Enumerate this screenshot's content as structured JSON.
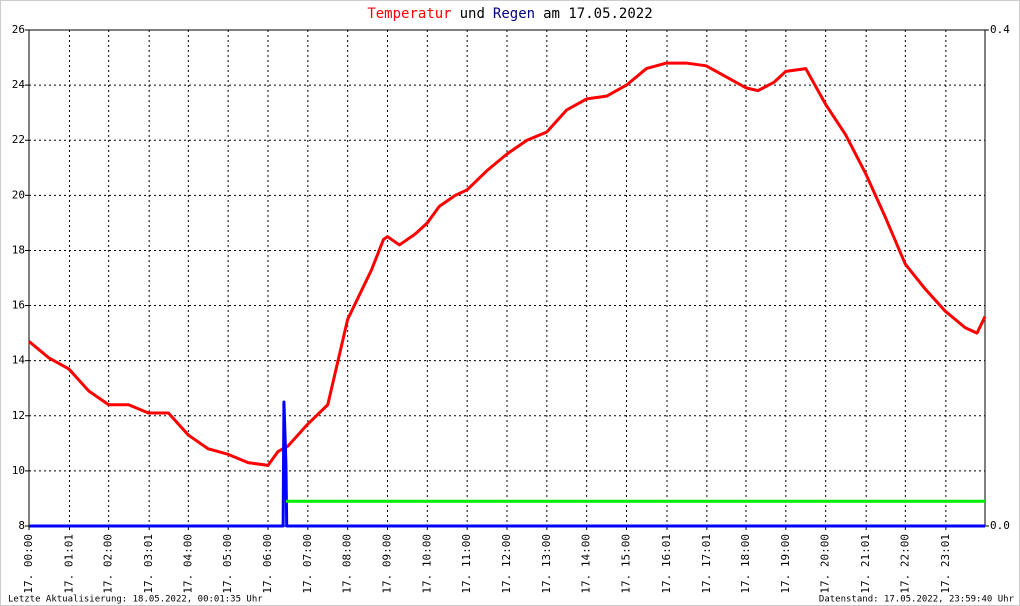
{
  "chart_data": {
    "type": "line",
    "title_segments": [
      {
        "text": "Temperatur",
        "color": "#ff0000"
      },
      {
        "text": "und",
        "color": "#000000"
      },
      {
        "text": "Regen",
        "color": "#000080"
      },
      {
        "text": "am 17.05.2022",
        "color": "#000000"
      }
    ],
    "footer_left": "Letzte Aktualisierung: 18.05.2022, 00:01:35 Uhr",
    "footer_right": "Datenstand: 17.05.2022, 23:59:40 Uhr",
    "xlim": [
      0,
      24
    ],
    "xticks": [
      {
        "value": 0,
        "label": "17. 00:00"
      },
      {
        "value": 1.017,
        "label": "17. 01:01"
      },
      {
        "value": 2,
        "label": "17. 02:00"
      },
      {
        "value": 3.017,
        "label": "17. 03:01"
      },
      {
        "value": 4,
        "label": "17. 04:00"
      },
      {
        "value": 5,
        "label": "17. 05:00"
      },
      {
        "value": 6,
        "label": "17. 06:00"
      },
      {
        "value": 7,
        "label": "17. 07:00"
      },
      {
        "value": 8,
        "label": "17. 08:00"
      },
      {
        "value": 9,
        "label": "17. 09:00"
      },
      {
        "value": 10,
        "label": "17. 10:00"
      },
      {
        "value": 11,
        "label": "17. 11:00"
      },
      {
        "value": 12,
        "label": "17. 12:00"
      },
      {
        "value": 13,
        "label": "17. 13:00"
      },
      {
        "value": 14,
        "label": "17. 14:00"
      },
      {
        "value": 15,
        "label": "17. 15:00"
      },
      {
        "value": 16.017,
        "label": "17. 16:01"
      },
      {
        "value": 17.017,
        "label": "17. 17:01"
      },
      {
        "value": 18,
        "label": "17. 18:00"
      },
      {
        "value": 19,
        "label": "17. 19:00"
      },
      {
        "value": 20,
        "label": "17. 20:00"
      },
      {
        "value": 21.017,
        "label": "17. 21:01"
      },
      {
        "value": 22,
        "label": "17. 22:00"
      },
      {
        "value": 23.017,
        "label": "17. 23:01"
      }
    ],
    "ylim": [
      8,
      26
    ],
    "yticks": [
      8,
      10,
      12,
      14,
      16,
      18,
      20,
      22,
      24,
      26
    ],
    "y2lim": [
      0,
      0.4
    ],
    "y2ticks": [
      {
        "value": 0,
        "label": "0.0"
      },
      {
        "value": 0.4,
        "label": "0.4"
      }
    ],
    "grid": true,
    "series": [
      {
        "color": "#ff0000",
        "x": [
          0,
          0.5,
          1,
          1.5,
          2,
          2.5,
          3,
          3.5,
          4,
          4.5,
          5,
          5.5,
          6,
          6.25,
          6.5,
          7,
          7.5,
          8,
          8.6,
          8.9,
          9,
          9.3,
          9.7,
          10,
          10.3,
          10.7,
          11,
          11.5,
          12,
          12.5,
          13,
          13.5,
          14,
          14.5,
          15,
          15.5,
          16,
          16.5,
          17,
          17.5,
          18,
          18.3,
          18.7,
          19,
          19.5,
          20,
          20.5,
          21,
          21.5,
          22,
          22.5,
          23,
          23.5,
          23.8,
          24
        ],
        "values": [
          14.7,
          14.1,
          13.7,
          12.9,
          12.4,
          12.4,
          12.1,
          12.1,
          11.3,
          10.8,
          10.6,
          10.3,
          10.2,
          10.7,
          10.9,
          11.7,
          12.4,
          15.5,
          17.3,
          18.4,
          18.5,
          18.2,
          18.6,
          19.0,
          19.6,
          20.0,
          20.2,
          20.9,
          21.5,
          22.0,
          22.3,
          23.1,
          23.5,
          23.6,
          24.0,
          24.6,
          24.8,
          24.8,
          24.7,
          24.3,
          23.9,
          23.8,
          24.1,
          24.5,
          24.6,
          23.3,
          22.2,
          20.8,
          19.2,
          17.5,
          16.6,
          15.8,
          15.2,
          15.0,
          15.6
        ]
      },
      {
        "color": "#0000ff",
        "axis": "y2",
        "x": [
          0,
          6.38,
          6.4,
          6.45,
          6.47,
          24
        ],
        "values": [
          0,
          0,
          0.1,
          0.05,
          0,
          0
        ]
      },
      {
        "color": "#00ee00",
        "axis": "y2",
        "x": [
          6.45,
          24
        ],
        "values": [
          0.02,
          0.02
        ]
      }
    ]
  }
}
